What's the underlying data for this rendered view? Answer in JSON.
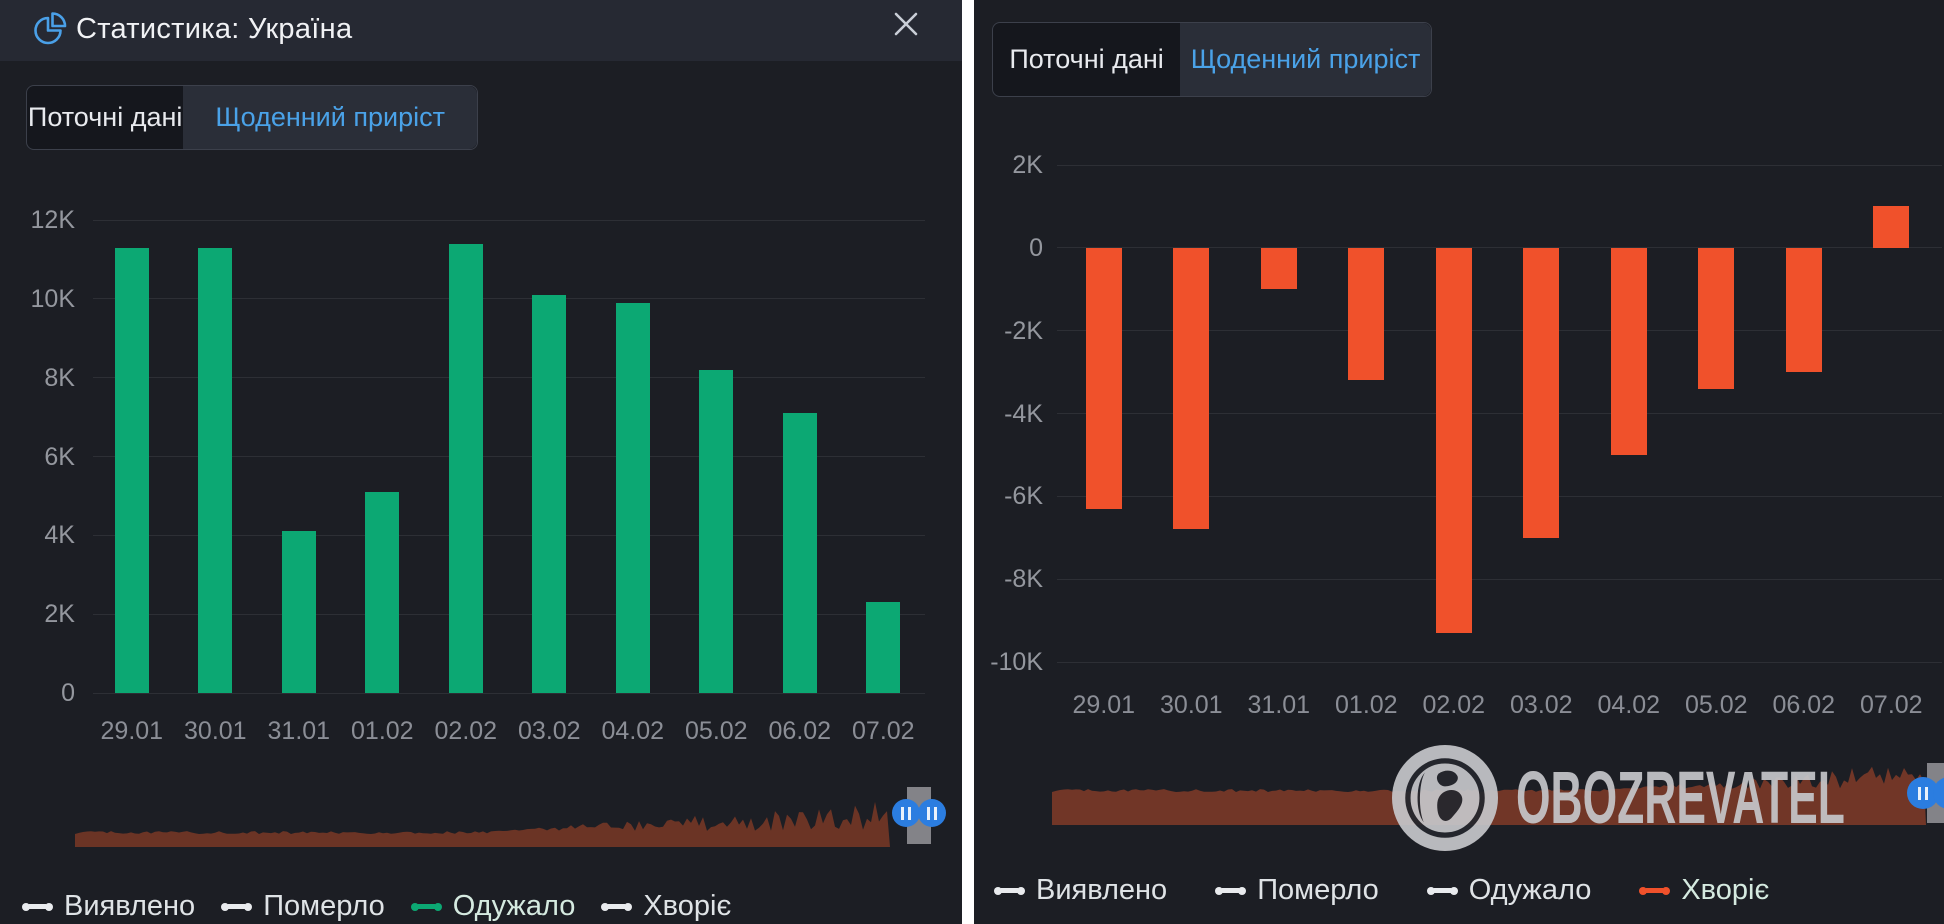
{
  "colors": {
    "panel_bg": "#1c1e24",
    "header_bg": "#262933",
    "accent_blue": "#4aa2e8",
    "green": "#0ca873",
    "orange": "#f0512b",
    "scrubber_fill": "#6e3526",
    "handle_blue": "#2b7de0",
    "divider": "#ffffff"
  },
  "panels": [
    {
      "name": "left",
      "header": {
        "icon": "pie-chart-icon",
        "title": "Статистика: Україна",
        "close": "close-icon"
      },
      "tabs": [
        {
          "label": "Поточні дані",
          "active": false
        },
        {
          "label": "Щоденний приріст",
          "active": true
        }
      ],
      "legend": [
        {
          "label": "Виявлено",
          "color": "#e9ebee",
          "active": false
        },
        {
          "label": "Померло",
          "color": "#e9ebee",
          "active": false
        },
        {
          "label": "Одужало",
          "color": "#0ca873",
          "active": true
        },
        {
          "label": "Хворіє",
          "color": "#e9ebee",
          "active": false
        }
      ]
    },
    {
      "name": "right",
      "tabs": [
        {
          "label": "Поточні дані",
          "active": false
        },
        {
          "label": "Щоденний приріст",
          "active": true
        }
      ],
      "legend": [
        {
          "label": "Виявлено",
          "color": "#e9ebee",
          "active": false
        },
        {
          "label": "Померло",
          "color": "#e9ebee",
          "active": false
        },
        {
          "label": "Одужало",
          "color": "#e9ebee",
          "active": false
        },
        {
          "label": "Хворіє",
          "color": "#f0512b",
          "active": true
        }
      ],
      "watermark": {
        "icon": "globe-icon",
        "text": "OBOZREVATEL"
      }
    }
  ],
  "chart_data": [
    {
      "type": "bar",
      "series": "Одужало",
      "categories": [
        "29.01",
        "30.01",
        "31.01",
        "01.02",
        "02.02",
        "03.02",
        "04.02",
        "05.02",
        "06.02",
        "07.02"
      ],
      "values": [
        11300,
        11300,
        4100,
        5100,
        11400,
        10100,
        9900,
        8200,
        7100,
        2300
      ],
      "bar_color": "#0ca873",
      "ylim": [
        0,
        12000
      ],
      "yticks": [
        {
          "value": 0,
          "label": "0"
        },
        {
          "value": 2000,
          "label": "2K"
        },
        {
          "value": 4000,
          "label": "4K"
        },
        {
          "value": 6000,
          "label": "6K"
        },
        {
          "value": 8000,
          "label": "8K"
        },
        {
          "value": 10000,
          "label": "10K"
        },
        {
          "value": 12000,
          "label": "12K"
        }
      ],
      "grid": true,
      "legend_position": "bottom"
    },
    {
      "type": "bar",
      "series": "Хворіє",
      "categories": [
        "29.01",
        "30.01",
        "31.01",
        "01.02",
        "02.02",
        "03.02",
        "04.02",
        "05.02",
        "06.02",
        "07.02"
      ],
      "values": [
        -6300,
        -6800,
        -1000,
        -3200,
        -9300,
        -7000,
        -5000,
        -3400,
        -3000,
        1000
      ],
      "bar_color": "#f0512b",
      "ylim": [
        -10000,
        2000
      ],
      "yticks": [
        {
          "value": -10000,
          "label": "-10K"
        },
        {
          "value": -8000,
          "label": "-8K"
        },
        {
          "value": -6000,
          "label": "-6K"
        },
        {
          "value": -4000,
          "label": "-4K"
        },
        {
          "value": -2000,
          "label": "-2K"
        },
        {
          "value": 0,
          "label": "0"
        },
        {
          "value": 2000,
          "label": "2K"
        }
      ],
      "grid": true,
      "legend_position": "bottom"
    }
  ]
}
